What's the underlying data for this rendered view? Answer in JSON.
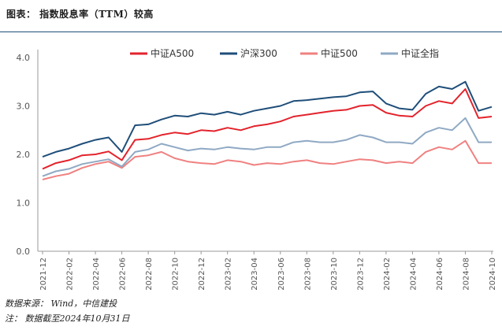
{
  "header": {
    "title": "图表： 指数股息率（TTM）较高"
  },
  "footer": {
    "source": "数据来源： Wind，中信建投",
    "note": "注： 数据截至2024年10月31日"
  },
  "chart_data": {
    "type": "line",
    "title": "",
    "xlabel": "",
    "ylabel": "",
    "ylim": [
      0.0,
      4.0
    ],
    "yticks": [
      "0.0",
      "1.0",
      "2.0",
      "3.0",
      "4.0"
    ],
    "grid": false,
    "legend_position": "top",
    "x": [
      "2021-12",
      "2022-01",
      "2022-02",
      "2022-03",
      "2022-04",
      "2022-05",
      "2022-06",
      "2022-07",
      "2022-08",
      "2022-09",
      "2022-10",
      "2022-11",
      "2022-12",
      "2023-01",
      "2023-02",
      "2023-03",
      "2023-04",
      "2023-05",
      "2023-06",
      "2023-07",
      "2023-08",
      "2023-09",
      "2023-10",
      "2023-11",
      "2023-12",
      "2024-01",
      "2024-02",
      "2024-03",
      "2024-04",
      "2024-05",
      "2024-06",
      "2024-07",
      "2024-08",
      "2024-09",
      "2024-10"
    ],
    "xticks": [
      "2021-12",
      "2022-02",
      "2022-04",
      "2022-06",
      "2022-08",
      "2022-10",
      "2022-12",
      "2023-02",
      "2023-04",
      "2023-06",
      "2023-08",
      "2023-10",
      "2023-12",
      "2024-02",
      "2024-04",
      "2024-06",
      "2024-08",
      "2024-10"
    ],
    "series": [
      {
        "name": "中证A500",
        "color": "#e3232c",
        "values": [
          1.7,
          1.82,
          1.88,
          1.98,
          2.0,
          2.06,
          1.88,
          2.3,
          2.32,
          2.4,
          2.45,
          2.42,
          2.5,
          2.48,
          2.55,
          2.5,
          2.58,
          2.62,
          2.68,
          2.78,
          2.82,
          2.86,
          2.9,
          2.92,
          3.0,
          3.02,
          2.86,
          2.8,
          2.78,
          3.0,
          3.1,
          3.05,
          3.35,
          2.75,
          2.78
        ]
      },
      {
        "name": "沪深300",
        "color": "#1f4e79",
        "values": [
          1.95,
          2.05,
          2.12,
          2.22,
          2.3,
          2.35,
          2.05,
          2.6,
          2.62,
          2.72,
          2.8,
          2.78,
          2.85,
          2.82,
          2.88,
          2.82,
          2.9,
          2.95,
          3.0,
          3.1,
          3.12,
          3.15,
          3.18,
          3.2,
          3.28,
          3.3,
          3.05,
          2.95,
          2.92,
          3.25,
          3.4,
          3.35,
          3.5,
          2.9,
          2.98
        ]
      },
      {
        "name": "中证500",
        "color": "#f08080",
        "values": [
          1.48,
          1.55,
          1.6,
          1.72,
          1.8,
          1.85,
          1.72,
          1.95,
          1.98,
          2.05,
          1.92,
          1.85,
          1.82,
          1.8,
          1.88,
          1.85,
          1.78,
          1.82,
          1.8,
          1.85,
          1.88,
          1.82,
          1.8,
          1.85,
          1.9,
          1.88,
          1.82,
          1.85,
          1.82,
          2.05,
          2.15,
          2.1,
          2.28,
          1.82,
          1.82
        ]
      },
      {
        "name": "中证全指",
        "color": "#8fa9c4",
        "values": [
          1.55,
          1.65,
          1.7,
          1.8,
          1.85,
          1.9,
          1.75,
          2.05,
          2.1,
          2.22,
          2.15,
          2.08,
          2.12,
          2.1,
          2.15,
          2.12,
          2.1,
          2.15,
          2.15,
          2.25,
          2.28,
          2.25,
          2.25,
          2.3,
          2.4,
          2.35,
          2.25,
          2.25,
          2.22,
          2.45,
          2.55,
          2.5,
          2.75,
          2.25,
          2.25
        ]
      }
    ]
  }
}
